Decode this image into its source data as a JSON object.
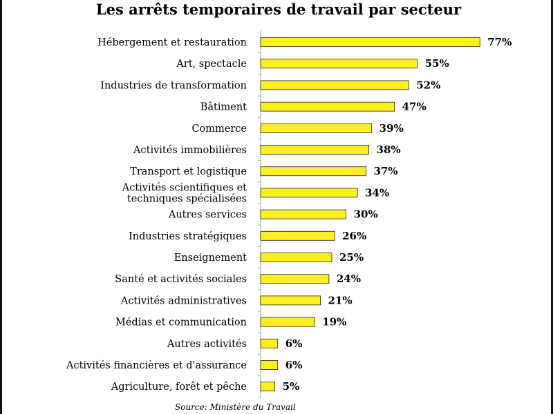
{
  "chart_data": {
    "type": "bar",
    "orientation": "horizontal",
    "title": "Les arrêts temporaires de travail par secteur",
    "categories": [
      [
        "Hébergement et restauration"
      ],
      [
        "Art, spectacle"
      ],
      [
        "Industries de transformation"
      ],
      [
        "Bâtiment"
      ],
      [
        "Commerce"
      ],
      [
        "Activités immobilières"
      ],
      [
        "Transport et logistique"
      ],
      [
        "Activités scientifiques et",
        "techniques spécialisées"
      ],
      [
        "Autres services"
      ],
      [
        "Industries stratégiques"
      ],
      [
        "Enseignement"
      ],
      [
        "Santé et activités sociales"
      ],
      [
        "Activités administratives"
      ],
      [
        "Médias et communication"
      ],
      [
        "Autres activités"
      ],
      [
        "Activités financières et d'assurance"
      ],
      [
        "Agriculture, forêt et pêche"
      ]
    ],
    "values": [
      77,
      55,
      52,
      47,
      39,
      38,
      37,
      34,
      30,
      26,
      25,
      24,
      21,
      19,
      6,
      6,
      5
    ],
    "value_labels": [
      "77%",
      "55%",
      "52%",
      "47%",
      "39%",
      "38%",
      "37%",
      "34%",
      "30%",
      "26%",
      "25%",
      "24%",
      "21%",
      "19%",
      "6%",
      "6%",
      "5%"
    ],
    "xlim": [
      0,
      100
    ],
    "grid": false,
    "bar_color": "#ffee22",
    "bar_edge_color": "#222222",
    "axis_color": "#aaaaaa",
    "source": "Source: Ministère du Travail"
  }
}
